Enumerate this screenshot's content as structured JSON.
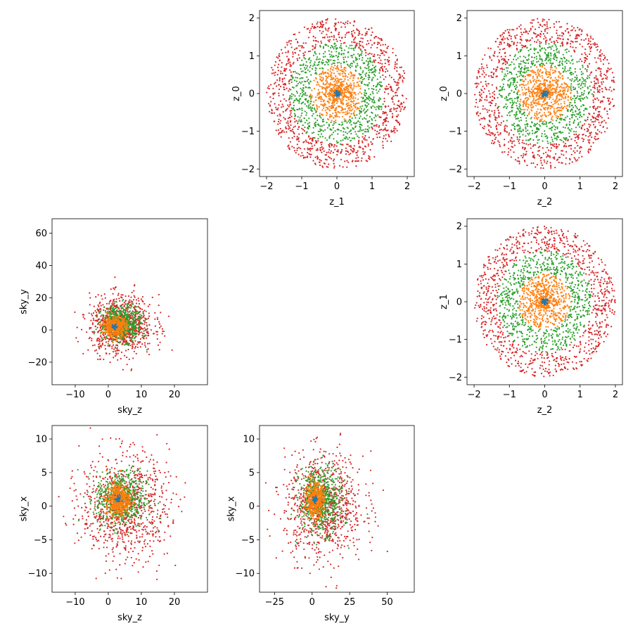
{
  "colors": {
    "inner_blue": "#1f77b4",
    "orange": "#ff7f0e",
    "green": "#2ca02c",
    "red": "#d62728",
    "frame": "#000000",
    "background": "#ffffff"
  },
  "chart_data": [
    {
      "id": "z1_vs_z0",
      "type": "scatter",
      "xlabel": "z_1",
      "ylabel": "z_0",
      "xlim": [
        -2.2,
        2.2
      ],
      "ylim": [
        -2.2,
        2.2
      ],
      "xticks": [
        -2,
        -1,
        0,
        1,
        2
      ],
      "xtick_labels": [
        "−2",
        "−1",
        "0",
        "1",
        "2"
      ],
      "yticks": [
        -2,
        -1,
        0,
        1,
        2
      ],
      "ytick_labels": [
        "−2",
        "−1",
        "0",
        "1",
        "2"
      ],
      "grid": false,
      "legend": "none",
      "series": [
        {
          "color": "#1f77b4",
          "shape": "ring",
          "center": [
            0,
            0
          ],
          "radius": [
            0.0,
            0.1
          ],
          "points": 40
        },
        {
          "color": "#ff7f0e",
          "shape": "ring",
          "center": [
            0,
            0
          ],
          "radius": [
            0.0,
            0.75
          ],
          "points": 700
        },
        {
          "color": "#2ca02c",
          "shape": "ring",
          "center": [
            0,
            0
          ],
          "radius": [
            0.75,
            1.35
          ],
          "points": 700
        },
        {
          "color": "#d62728",
          "shape": "ring",
          "center": [
            0,
            0
          ],
          "radius": [
            1.35,
            2.0
          ],
          "points": 900
        }
      ]
    },
    {
      "id": "z2_vs_z0",
      "type": "scatter",
      "xlabel": "z_2",
      "ylabel": "z_0",
      "xlim": [
        -2.2,
        2.2
      ],
      "ylim": [
        -2.2,
        2.2
      ],
      "xticks": [
        -2,
        -1,
        0,
        1,
        2
      ],
      "xtick_labels": [
        "−2",
        "−1",
        "0",
        "1",
        "2"
      ],
      "yticks": [
        -2,
        -1,
        0,
        1,
        2
      ],
      "ytick_labels": [
        "−2",
        "−1",
        "0",
        "1",
        "2"
      ],
      "grid": false,
      "legend": "none",
      "series": [
        {
          "color": "#1f77b4",
          "shape": "ring",
          "center": [
            0,
            0
          ],
          "radius": [
            0.0,
            0.1
          ],
          "points": 40
        },
        {
          "color": "#ff7f0e",
          "shape": "ring",
          "center": [
            0,
            0
          ],
          "radius": [
            0.0,
            0.75
          ],
          "points": 700
        },
        {
          "color": "#2ca02c",
          "shape": "ring",
          "center": [
            0,
            0
          ],
          "radius": [
            0.75,
            1.35
          ],
          "points": 700
        },
        {
          "color": "#d62728",
          "shape": "ring",
          "center": [
            0,
            0
          ],
          "radius": [
            1.35,
            2.0
          ],
          "points": 900
        }
      ]
    },
    {
      "id": "skyz_vs_skyy",
      "type": "scatter",
      "xlabel": "sky_z",
      "ylabel": "sky_y",
      "xlim": [
        -17,
        30
      ],
      "ylim": [
        -34,
        69
      ],
      "xticks": [
        -10,
        0,
        10,
        20
      ],
      "xtick_labels": [
        "−10",
        "0",
        "10",
        "20"
      ],
      "yticks": [
        -20,
        0,
        20,
        40,
        60
      ],
      "ytick_labels": [
        "−20",
        "0",
        "20",
        "40",
        "60"
      ],
      "grid": false,
      "legend": "none",
      "series": [
        {
          "color": "#1f77b4",
          "shape": "blob",
          "center": [
            2,
            2
          ],
          "spread": [
            0.8,
            1.5
          ],
          "points": 30
        },
        {
          "color": "#ff7f0e",
          "shape": "blob",
          "center": [
            2,
            2
          ],
          "spread": [
            3.0,
            5.0
          ],
          "points": 500
        },
        {
          "color": "#2ca02c",
          "shape": "blob",
          "center": [
            4,
            4
          ],
          "spread": [
            5.0,
            9.0
          ],
          "points": 600
        },
        {
          "color": "#d62728",
          "shape": "blob",
          "center": [
            4,
            3
          ],
          "spread": [
            8.0,
            15.0
          ],
          "points": 900
        }
      ]
    },
    {
      "id": "z2_vs_z1",
      "type": "scatter",
      "xlabel": "z_2",
      "ylabel": "z_1",
      "xlim": [
        -2.2,
        2.2
      ],
      "ylim": [
        -2.2,
        2.2
      ],
      "xticks": [
        -2,
        -1,
        0,
        1,
        2
      ],
      "xtick_labels": [
        "−2",
        "−1",
        "0",
        "1",
        "2"
      ],
      "yticks": [
        -2,
        -1,
        0,
        1,
        2
      ],
      "ytick_labels": [
        "−2",
        "−1",
        "0",
        "1",
        "2"
      ],
      "grid": false,
      "legend": "none",
      "series": [
        {
          "color": "#1f77b4",
          "shape": "ring",
          "center": [
            0,
            0
          ],
          "radius": [
            0.0,
            0.1
          ],
          "points": 40
        },
        {
          "color": "#ff7f0e",
          "shape": "ring",
          "center": [
            0,
            0
          ],
          "radius": [
            0.0,
            0.75
          ],
          "points": 700
        },
        {
          "color": "#2ca02c",
          "shape": "ring",
          "center": [
            0,
            0
          ],
          "radius": [
            0.75,
            1.35
          ],
          "points": 700
        },
        {
          "color": "#d62728",
          "shape": "ring",
          "center": [
            0,
            0
          ],
          "radius": [
            1.35,
            2.0
          ],
          "points": 900
        }
      ]
    },
    {
      "id": "skyz_vs_skyx",
      "type": "scatter",
      "xlabel": "sky_z",
      "ylabel": "sky_x",
      "xlim": [
        -17,
        30
      ],
      "ylim": [
        -12.8,
        12
      ],
      "xticks": [
        -10,
        0,
        10,
        20
      ],
      "xtick_labels": [
        "−10",
        "0",
        "10",
        "20"
      ],
      "yticks": [
        -10,
        -5,
        0,
        5,
        10
      ],
      "ytick_labels": [
        "−10",
        "−5",
        "0",
        "5",
        "10"
      ],
      "grid": false,
      "legend": "none",
      "series": [
        {
          "color": "#1f77b4",
          "shape": "blob",
          "center": [
            3,
            1
          ],
          "spread": [
            0.8,
            0.5
          ],
          "points": 30
        },
        {
          "color": "#ff7f0e",
          "shape": "blob",
          "center": [
            3,
            1
          ],
          "spread": [
            3.0,
            2.0
          ],
          "points": 500
        },
        {
          "color": "#2ca02c",
          "shape": "blob",
          "center": [
            4,
            1
          ],
          "spread": [
            6.5,
            3.5
          ],
          "points": 600
        },
        {
          "color": "#d62728",
          "shape": "blob",
          "center": [
            5,
            0
          ],
          "spread": [
            11.0,
            6.5
          ],
          "points": 900
        }
      ]
    },
    {
      "id": "skyy_vs_skyx",
      "type": "scatter",
      "xlabel": "sky_y",
      "ylabel": "sky_x",
      "xlim": [
        -35,
        68
      ],
      "ylim": [
        -12.8,
        12
      ],
      "xticks": [
        -25,
        0,
        25,
        50
      ],
      "xtick_labels": [
        "−25",
        "0",
        "25",
        "50"
      ],
      "yticks": [
        -10,
        -5,
        0,
        5,
        10
      ],
      "ytick_labels": [
        "−10",
        "−5",
        "0",
        "5",
        "10"
      ],
      "grid": false,
      "legend": "none",
      "series": [
        {
          "color": "#1f77b4",
          "shape": "blob",
          "center": [
            2,
            1
          ],
          "spread": [
            1.5,
            0.5
          ],
          "points": 30
        },
        {
          "color": "#ff7f0e",
          "shape": "blob",
          "center": [
            2,
            1
          ],
          "spread": [
            5.0,
            2.0
          ],
          "points": 500
        },
        {
          "color": "#2ca02c",
          "shape": "blob",
          "center": [
            6,
            1
          ],
          "spread": [
            12.0,
            4.0
          ],
          "points": 600
        },
        {
          "color": "#d62728",
          "shape": "blob",
          "center": [
            8,
            0
          ],
          "spread": [
            22.0,
            6.5
          ],
          "points": 900
        }
      ]
    }
  ]
}
